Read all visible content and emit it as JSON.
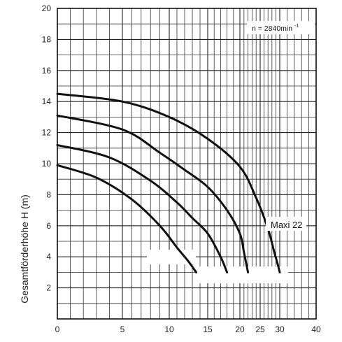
{
  "chart_data": {
    "type": "line",
    "ylabel": "Gesamtförderhöhe  H (m)",
    "xlabel": "",
    "title": "",
    "annotation": {
      "base": "n = 2840min",
      "sup": "-1"
    },
    "x_ticks": [
      {
        "v": 0,
        "label": "0"
      },
      {
        "v": 5,
        "label": "5"
      },
      {
        "v": 10,
        "label": "10"
      },
      {
        "v": 15,
        "label": "15"
      },
      {
        "v": 20,
        "label": "20"
      },
      {
        "v": 25,
        "label": "25"
      },
      {
        "v": 30,
        "label": "30"
      },
      {
        "v": 40,
        "label": "40"
      }
    ],
    "y_ticks": [
      2,
      4,
      6,
      8,
      10,
      12,
      14,
      16,
      18,
      20
    ],
    "ylim": [
      0,
      20
    ],
    "x_scale": "nonlinear (0–5 wide, compressing toward 40)",
    "series": [
      {
        "name": "",
        "x": [
          0,
          3,
          6,
          9,
          11,
          12.5,
          13.5
        ],
        "y": [
          9.9,
          9.1,
          7.7,
          6.0,
          4.6,
          3.7,
          3.0
        ]
      },
      {
        "name": "",
        "x": [
          0,
          4,
          8,
          11,
          13,
          15,
          17,
          18
        ],
        "y": [
          11.2,
          10.4,
          8.9,
          7.5,
          6.5,
          5.5,
          4.0,
          3.0
        ]
      },
      {
        "name": "",
        "x": [
          0,
          5,
          9,
          12,
          15,
          18,
          20,
          21,
          22
        ],
        "y": [
          13.1,
          12.2,
          10.7,
          9.6,
          8.5,
          7.0,
          5.5,
          4.3,
          3.0
        ]
      },
      {
        "name": "Maxi 22",
        "x": [
          0,
          5,
          10,
          15,
          20,
          24,
          27,
          28.5,
          29.5,
          30
        ],
        "y": [
          14.5,
          14.0,
          13.0,
          11.6,
          9.8,
          7.8,
          5.8,
          4.4,
          3.5,
          3.0
        ]
      }
    ],
    "model_label": "Maxi 22",
    "grid": true
  }
}
